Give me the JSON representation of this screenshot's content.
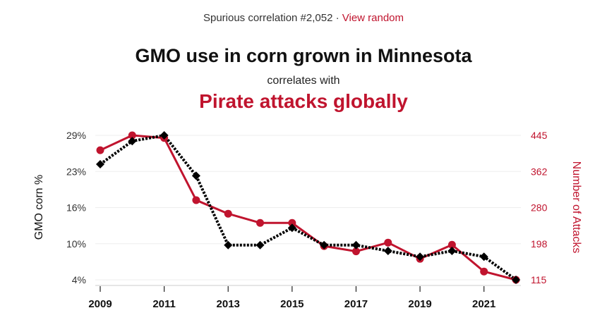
{
  "header": {
    "prefix": "Spurious correlation #2,052 · ",
    "view_random": "View random",
    "title": "GMO use in corn grown in Minnesota",
    "connector": "correlates with",
    "title2": "Pirate attacks globally"
  },
  "colors": {
    "accent": "#c0142e",
    "series1": "#000000",
    "series2": "#c0142e",
    "grid": "#eeeeee"
  },
  "chart_data": {
    "type": "line",
    "title": "GMO use in corn grown in Minnesota correlates with Pirate attacks globally",
    "x": [
      2009,
      2010,
      2011,
      2012,
      2013,
      2014,
      2015,
      2016,
      2017,
      2018,
      2019,
      2020,
      2021,
      2022
    ],
    "xticks": [
      "2009",
      "2011",
      "2013",
      "2015",
      "2017",
      "2019",
      "2021"
    ],
    "series": [
      {
        "name": "GMO corn %",
        "axis": "left",
        "style": "dotted-diamond",
        "values": [
          24,
          28,
          29,
          22,
          10,
          10,
          13,
          10,
          10,
          9,
          8,
          9,
          8,
          4
        ]
      },
      {
        "name": "Number of Attacks",
        "axis": "right",
        "style": "solid-circle",
        "values": [
          411,
          445,
          439,
          297,
          266,
          245,
          245,
          192,
          180,
          200,
          163,
          195,
          134,
          115
        ]
      }
    ],
    "ylabel_left": "GMO corn %",
    "ylabel_right": "Number of Attacks",
    "yticks_left": [
      "29%",
      "23%",
      "16%",
      "10%",
      "4%"
    ],
    "yticks_right": [
      "445",
      "362",
      "280",
      "198",
      "115"
    ],
    "ylim_left": [
      4,
      29
    ],
    "ylim_right": [
      115,
      445
    ],
    "grid": true
  }
}
